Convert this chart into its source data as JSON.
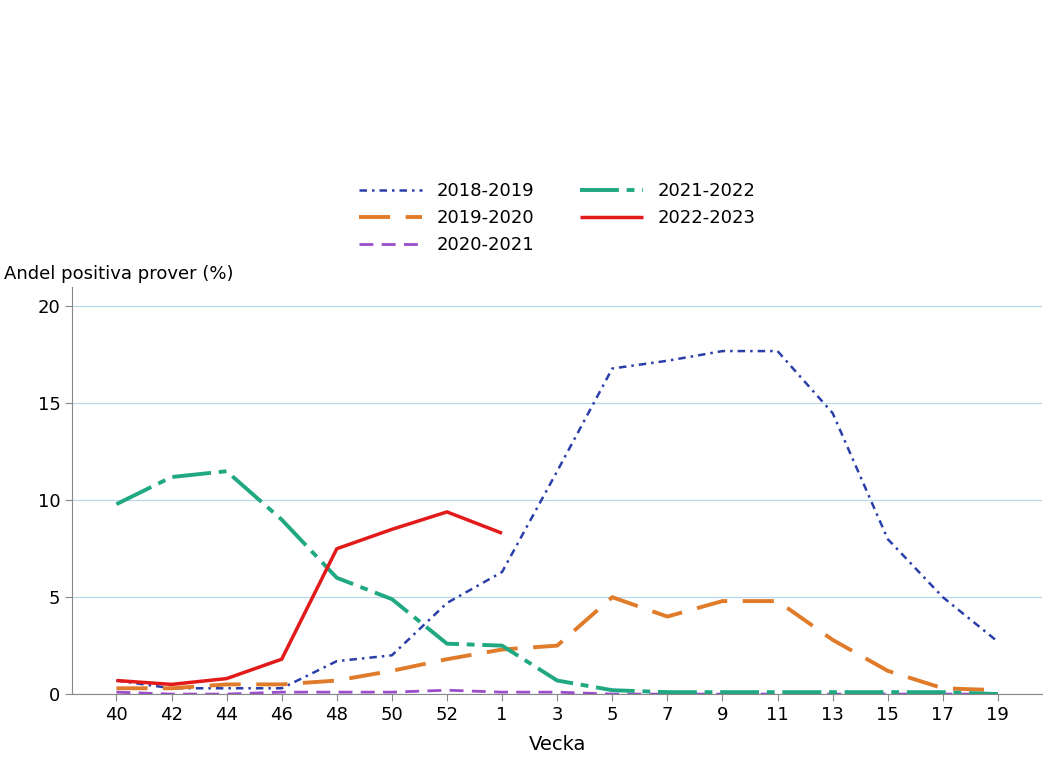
{
  "x_ticks": [
    40,
    42,
    44,
    46,
    48,
    50,
    52,
    1,
    3,
    5,
    7,
    9,
    11,
    13,
    15,
    17,
    19
  ],
  "x_positions": [
    0,
    2,
    4,
    6,
    8,
    10,
    12,
    14,
    16,
    18,
    20,
    22,
    24,
    26,
    28,
    30,
    32
  ],
  "series": {
    "2018-2019": {
      "color": "#2b3faa",
      "linestyle": "dashdot_dense",
      "linewidth": 1.8,
      "values": [
        0.7,
        0.3,
        0.3,
        0.3,
        1.7,
        2.0,
        4.7,
        6.3,
        11.5,
        16.8,
        17.2,
        17.7,
        17.7,
        14.5,
        8.0,
        5.0,
        2.7
      ]
    },
    "2019-2020": {
      "color": "#e07b2a",
      "linestyle": "dashed_long",
      "linewidth": 2.8,
      "values": [
        0.3,
        0.3,
        0.5,
        0.5,
        0.7,
        1.2,
        1.8,
        2.3,
        2.5,
        5.0,
        4.0,
        4.8,
        4.8,
        2.8,
        1.2,
        0.3,
        0.2
      ]
    },
    "2020-2021": {
      "color": "#9b4dca",
      "linestyle": "dashed",
      "linewidth": 2.0,
      "values": [
        0.1,
        0.0,
        0.0,
        0.1,
        0.1,
        0.1,
        0.2,
        0.1,
        0.1,
        0.0,
        0.0,
        0.0,
        0.0,
        0.0,
        0.0,
        0.0,
        0.0
      ]
    },
    "2021-2022": {
      "color": "#1fa882",
      "linestyle": "dashdot_long",
      "linewidth": 2.8,
      "values": [
        9.8,
        11.2,
        11.5,
        9.0,
        6.0,
        4.9,
        2.6,
        2.5,
        0.7,
        0.2,
        0.1,
        0.1,
        0.1,
        0.1,
        0.1,
        0.1,
        0.0
      ]
    },
    "2022-2023": {
      "color": "#e31a1a",
      "linestyle": "solid",
      "linewidth": 2.5,
      "values": [
        0.7,
        0.5,
        0.8,
        1.8,
        7.5,
        8.5,
        9.4,
        8.3,
        null,
        null,
        null,
        null,
        null,
        null,
        null,
        null,
        null
      ]
    }
  },
  "ylabel": "Andel positiva prover (%)",
  "xlabel": "Vecka",
  "ylim": [
    0,
    21
  ],
  "yticks": [
    0,
    5,
    10,
    15,
    20
  ],
  "background_color": "#ffffff",
  "grid_color": "#b8d8e8",
  "legend_entries_row1": [
    "2018-2019",
    "2019-2020"
  ],
  "legend_entries_row2": [
    "2020-2021",
    "2021-2022"
  ],
  "legend_entries_row3": [
    "2022-2023"
  ],
  "legend_entries": [
    "2018-2019",
    "2019-2020",
    "2020-2021",
    "2021-2022",
    "2022-2023"
  ]
}
